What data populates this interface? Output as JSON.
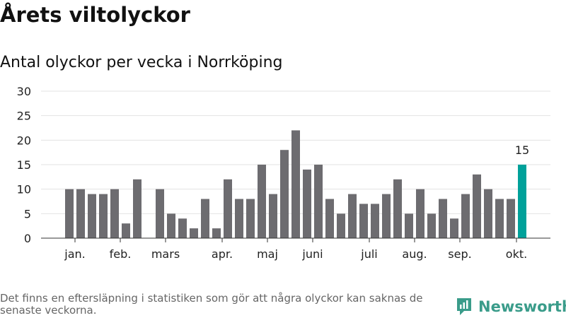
{
  "title": "Årets viltolyckor",
  "subtitle": "Antal olyckor per vecka i Norrköping",
  "footnote": "Det finns en eftersläpning i statistiken som gör att några olyckor kan saknas de senaste veckorna.",
  "brand": {
    "name": "Newsworthy",
    "icon": "newsworthy-logo-icon",
    "color": "#3a9c8a"
  },
  "colors": {
    "bar": "#6d6c70",
    "highlight": "#00a19a",
    "grid": "#e3e3e3",
    "axis": "#333333"
  },
  "chart_data": {
    "type": "bar",
    "title": "Antal olyckor per vecka i Norrköping",
    "xlabel": "",
    "ylabel": "",
    "ylim": [
      0,
      30
    ],
    "yticks": [
      0,
      5,
      10,
      15,
      20,
      25,
      30
    ],
    "grid": true,
    "values": [
      10,
      10,
      9,
      9,
      10,
      3,
      12,
      null,
      10,
      5,
      4,
      2,
      8,
      2,
      12,
      8,
      8,
      15,
      9,
      18,
      22,
      14,
      15,
      8,
      5,
      9,
      7,
      7,
      9,
      12,
      5,
      10,
      5,
      8,
      4,
      9,
      13,
      10,
      8,
      8,
      15
    ],
    "highlight_index": 40,
    "highlight_label": "15",
    "month_labels": [
      {
        "label": "jan.",
        "index": 0.5
      },
      {
        "label": "feb.",
        "index": 4.5
      },
      {
        "label": "mars",
        "index": 8.5
      },
      {
        "label": "apr.",
        "index": 13.5
      },
      {
        "label": "maj",
        "index": 17.5
      },
      {
        "label": "juni",
        "index": 21.5
      },
      {
        "label": "juli",
        "index": 26.5
      },
      {
        "label": "aug.",
        "index": 30.5
      },
      {
        "label": "sep.",
        "index": 34.5
      },
      {
        "label": "okt.",
        "index": 39.5
      }
    ]
  }
}
